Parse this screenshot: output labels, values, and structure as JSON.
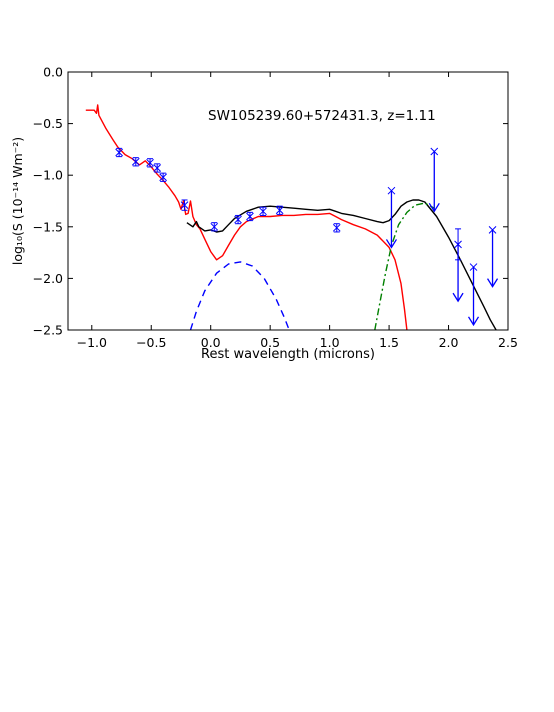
{
  "chart_data": {
    "type": "line",
    "title": "",
    "annotation": "SW105239.60+572431.3, z=1.11",
    "xlabel": "Rest wavelength (microns)",
    "ylabel": "log₁₀(S (10⁻¹⁴ Wm⁻²)",
    "xlim": [
      -1.2,
      2.5
    ],
    "ylim": [
      -2.5,
      0.0
    ],
    "x_ticks": [
      -1.0,
      -0.5,
      0.0,
      0.5,
      1.0,
      1.5,
      2.0,
      2.5
    ],
    "x_tick_labels": [
      "−1.0",
      "−0.5",
      "0.0",
      "0.5",
      "1.0",
      "1.5",
      "2.0",
      "2.5"
    ],
    "y_ticks": [
      0.0,
      -0.5,
      -1.0,
      -1.5,
      -2.0,
      -2.5
    ],
    "y_tick_labels": [
      "0.0",
      "−0.5",
      "−1.0",
      "−1.5",
      "−2.0",
      "−2.5"
    ],
    "grid": false,
    "colors": {
      "total": "#000000",
      "stellar": "#ff0000",
      "blue_component": "#0000ff",
      "green_component": "#008000",
      "points": "#0000ff"
    },
    "series": [
      {
        "key": "stellar",
        "style": "solid",
        "points": [
          [
            -1.05,
            -0.37
          ],
          [
            -0.98,
            -0.37
          ],
          [
            -0.96,
            -0.4
          ],
          [
            -0.95,
            -0.32
          ],
          [
            -0.94,
            -0.42
          ],
          [
            -0.88,
            -0.55
          ],
          [
            -0.82,
            -0.66
          ],
          [
            -0.78,
            -0.73
          ],
          [
            -0.72,
            -0.8
          ],
          [
            -0.66,
            -0.84
          ],
          [
            -0.6,
            -0.9
          ],
          [
            -0.55,
            -0.86
          ],
          [
            -0.5,
            -0.92
          ],
          [
            -0.45,
            -0.99
          ],
          [
            -0.4,
            -1.05
          ],
          [
            -0.35,
            -1.12
          ],
          [
            -0.3,
            -1.2
          ],
          [
            -0.27,
            -1.26
          ],
          [
            -0.25,
            -1.33
          ],
          [
            -0.23,
            -1.25
          ],
          [
            -0.21,
            -1.38
          ],
          [
            -0.19,
            -1.37
          ],
          [
            -0.17,
            -1.25
          ],
          [
            -0.15,
            -1.4
          ],
          [
            -0.12,
            -1.48
          ],
          [
            -0.09,
            -1.52
          ],
          [
            -0.05,
            -1.62
          ],
          [
            0.0,
            -1.74
          ],
          [
            0.05,
            -1.82
          ],
          [
            0.1,
            -1.78
          ],
          [
            0.15,
            -1.68
          ],
          [
            0.2,
            -1.58
          ],
          [
            0.25,
            -1.5
          ],
          [
            0.3,
            -1.45
          ],
          [
            0.4,
            -1.4
          ],
          [
            0.5,
            -1.4
          ],
          [
            0.6,
            -1.39
          ],
          [
            0.7,
            -1.39
          ],
          [
            0.8,
            -1.38
          ],
          [
            0.9,
            -1.38
          ],
          [
            1.0,
            -1.37
          ],
          [
            1.05,
            -1.4
          ],
          [
            1.1,
            -1.43
          ],
          [
            1.2,
            -1.48
          ],
          [
            1.3,
            -1.52
          ],
          [
            1.4,
            -1.58
          ],
          [
            1.5,
            -1.7
          ],
          [
            1.55,
            -1.82
          ],
          [
            1.6,
            -2.05
          ],
          [
            1.63,
            -2.3
          ],
          [
            1.65,
            -2.5
          ]
        ]
      },
      {
        "key": "total",
        "style": "solid",
        "points": [
          [
            -0.2,
            -1.46
          ],
          [
            -0.15,
            -1.5
          ],
          [
            -0.12,
            -1.45
          ],
          [
            -0.1,
            -1.5
          ],
          [
            -0.05,
            -1.54
          ],
          [
            0.0,
            -1.53
          ],
          [
            0.05,
            -1.55
          ],
          [
            0.1,
            -1.54
          ],
          [
            0.15,
            -1.48
          ],
          [
            0.2,
            -1.42
          ],
          [
            0.3,
            -1.35
          ],
          [
            0.4,
            -1.31
          ],
          [
            0.5,
            -1.3
          ],
          [
            0.6,
            -1.31
          ],
          [
            0.7,
            -1.32
          ],
          [
            0.8,
            -1.33
          ],
          [
            0.9,
            -1.34
          ],
          [
            1.0,
            -1.33
          ],
          [
            1.05,
            -1.35
          ],
          [
            1.1,
            -1.37
          ],
          [
            1.2,
            -1.39
          ],
          [
            1.3,
            -1.42
          ],
          [
            1.4,
            -1.45
          ],
          [
            1.45,
            -1.46
          ],
          [
            1.5,
            -1.44
          ],
          [
            1.55,
            -1.38
          ],
          [
            1.6,
            -1.3
          ],
          [
            1.65,
            -1.26
          ],
          [
            1.7,
            -1.24
          ],
          [
            1.75,
            -1.24
          ],
          [
            1.8,
            -1.26
          ],
          [
            1.9,
            -1.4
          ],
          [
            2.0,
            -1.6
          ],
          [
            2.1,
            -1.82
          ],
          [
            2.2,
            -2.05
          ],
          [
            2.3,
            -2.28
          ],
          [
            2.35,
            -2.4
          ],
          [
            2.4,
            -2.5
          ]
        ]
      },
      {
        "key": "blue_component",
        "style": "dashed",
        "points": [
          [
            -0.17,
            -2.5
          ],
          [
            -0.12,
            -2.32
          ],
          [
            -0.05,
            -2.12
          ],
          [
            0.05,
            -1.95
          ],
          [
            0.15,
            -1.86
          ],
          [
            0.25,
            -1.84
          ],
          [
            0.35,
            -1.88
          ],
          [
            0.45,
            -2.0
          ],
          [
            0.55,
            -2.2
          ],
          [
            0.62,
            -2.38
          ],
          [
            0.66,
            -2.5
          ]
        ]
      },
      {
        "key": "green_component",
        "style": "dashdot",
        "points": [
          [
            1.38,
            -2.5
          ],
          [
            1.42,
            -2.25
          ],
          [
            1.47,
            -1.95
          ],
          [
            1.52,
            -1.68
          ],
          [
            1.58,
            -1.48
          ],
          [
            1.65,
            -1.36
          ],
          [
            1.72,
            -1.29
          ],
          [
            1.8,
            -1.27
          ],
          [
            1.88,
            -1.32
          ]
        ]
      }
    ],
    "data_points": [
      {
        "x": -0.77,
        "y": -0.78,
        "err": 0.04
      },
      {
        "x": -0.63,
        "y": -0.87,
        "err": 0.04
      },
      {
        "x": -0.51,
        "y": -0.88,
        "err": 0.04
      },
      {
        "x": -0.45,
        "y": -0.93,
        "err": 0.04
      },
      {
        "x": -0.4,
        "y": -1.02,
        "err": 0.04
      },
      {
        "x": -0.22,
        "y": -1.29,
        "err": 0.05
      },
      {
        "x": 0.03,
        "y": -1.5,
        "err": 0.04
      },
      {
        "x": 0.23,
        "y": -1.43,
        "err": 0.04
      },
      {
        "x": 0.33,
        "y": -1.4,
        "err": 0.04
      },
      {
        "x": 0.44,
        "y": -1.35,
        "err": 0.04
      },
      {
        "x": 0.58,
        "y": -1.34,
        "err": 0.04
      },
      {
        "x": 1.06,
        "y": -1.51,
        "err": 0.04
      }
    ],
    "upper_limits": [
      {
        "x": 1.52,
        "y": -1.15,
        "to": -1.7
      },
      {
        "x": 1.88,
        "y": -0.77,
        "to": -1.35
      },
      {
        "x": 2.08,
        "y": -1.67,
        "to": -2.22,
        "err": 0.15
      },
      {
        "x": 2.21,
        "y": -1.89,
        "to": -2.45
      },
      {
        "x": 2.37,
        "y": -1.53,
        "to": -2.08
      }
    ]
  }
}
